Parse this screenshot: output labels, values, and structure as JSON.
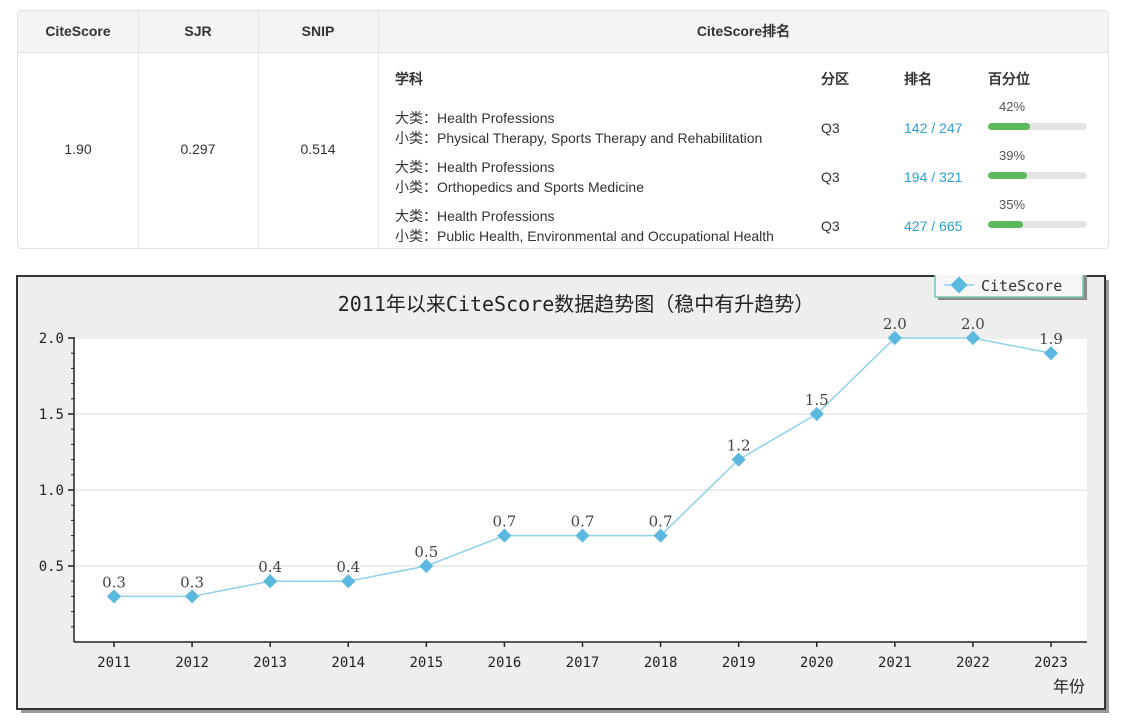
{
  "metrics": {
    "headers": {
      "citescore": "CiteScore",
      "sjr": "SJR",
      "snip": "SNIP",
      "rank": "CiteScore排名"
    },
    "values": {
      "citescore": "1.90",
      "sjr": "0.297",
      "snip": "0.514"
    }
  },
  "ranking": {
    "col_subject": "学科",
    "col_quartile": "分区",
    "col_rank": "排名",
    "col_percentile": "百分位",
    "rows": [
      {
        "major": "大类：Health Professions",
        "minor": "小类：Physical Therapy, Sports Therapy and Rehabilitation",
        "quartile": "Q3",
        "rank": "142 / 247",
        "percentile_label": "42%",
        "percentile": 42
      },
      {
        "major": "大类：Health Professions",
        "minor": "小类：Orthopedics and Sports Medicine",
        "quartile": "Q3",
        "rank": "194 / 321",
        "percentile_label": "39%",
        "percentile": 39
      },
      {
        "major": "大类：Health Professions",
        "minor": "小类：Public Health, Environmental and Occupational Health",
        "quartile": "Q3",
        "rank": "427 / 665",
        "percentile_label": "35%",
        "percentile": 35
      }
    ]
  },
  "chart_data": {
    "type": "line",
    "title": "2011年以来CiteScore数据趋势图（稳中有升趋势）",
    "xlabel": "年份",
    "ylabel": "",
    "categories": [
      "2011",
      "2012",
      "2013",
      "2014",
      "2015",
      "2016",
      "2017",
      "2018",
      "2019",
      "2020",
      "2021",
      "2022",
      "2023"
    ],
    "series": [
      {
        "name": "CiteScore",
        "values": [
          0.3,
          0.3,
          0.4,
          0.4,
          0.5,
          0.7,
          0.7,
          0.7,
          1.2,
          1.5,
          2.0,
          2.0,
          1.9
        ],
        "labels": [
          "0.3",
          "0.3",
          "0.4",
          "0.4",
          "0.5",
          "0.7",
          "0.7",
          "0.7",
          "1.2",
          "1.5",
          "2.0",
          "2.0",
          "1.9"
        ]
      }
    ],
    "yticks": [
      "0.5",
      "1.0",
      "1.5",
      "2.0"
    ],
    "ylim": [
      0,
      2.0
    ],
    "grid": true,
    "legend": "top-right",
    "colors": {
      "line": "#8fd0ea",
      "marker": "#5bb8de",
      "background": "#eeeeee",
      "frame": "#333333",
      "legend_border": "#7ac4b8"
    }
  }
}
